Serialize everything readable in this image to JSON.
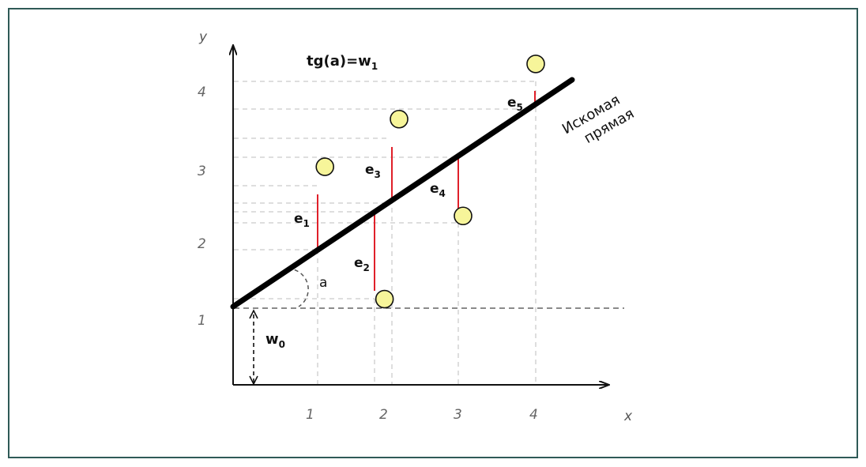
{
  "axes": {
    "x_label": "x",
    "y_label": "y"
  },
  "x_ticks": [
    "1",
    "2",
    "3",
    "4"
  ],
  "y_ticks": [
    "1",
    "2",
    "3",
    "4"
  ],
  "formula": {
    "prefix": "tg(a)=w",
    "sub": "1"
  },
  "angle_label": "a",
  "intercept_label": {
    "base": "w",
    "sub": "0"
  },
  "line_label": {
    "line1": "Искомая",
    "line2": "прямая"
  },
  "colors": {
    "border": "#2f5a57",
    "point_fill": "#f7f59a",
    "error_line": "#e0202a",
    "guide": "#bbbbbb"
  },
  "errors": [
    {
      "base": "e",
      "sub": "1"
    },
    {
      "base": "e",
      "sub": "2"
    },
    {
      "base": "e",
      "sub": "3"
    },
    {
      "base": "e",
      "sub": "4"
    },
    {
      "base": "e",
      "sub": "5"
    }
  ],
  "chart_data": {
    "type": "scatter",
    "x_ticks": [
      1,
      2,
      3,
      4
    ],
    "y_ticks": [
      1,
      2,
      3,
      4
    ],
    "points": [
      {
        "x": 1.1,
        "y": 2.87
      },
      {
        "x": 1.92,
        "y": 1.12
      },
      {
        "x": 2.12,
        "y": 3.5
      },
      {
        "x": 3.0,
        "y": 2.22
      },
      {
        "x": 4.0,
        "y": 4.23
      }
    ]
  }
}
